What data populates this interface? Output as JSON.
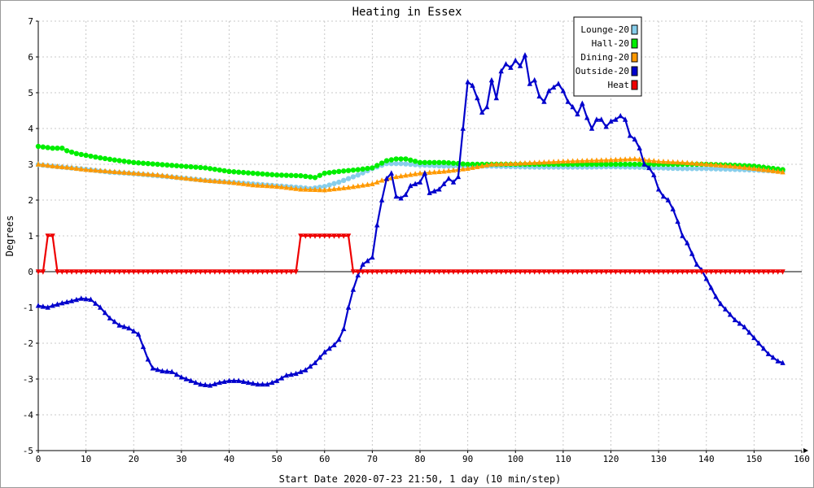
{
  "chart_data": {
    "type": "line",
    "title": "Heating in Essex",
    "xlabel": "Start Date 2020-07-23 21:50, 1 day (10 min/step)",
    "ylabel": "Degrees",
    "xlim": [
      0,
      160
    ],
    "ylim": [
      -5,
      7
    ],
    "x_ticks": [
      0,
      10,
      20,
      30,
      40,
      50,
      60,
      70,
      80,
      90,
      100,
      110,
      120,
      130,
      140,
      150,
      160
    ],
    "y_ticks": [
      -5,
      -4,
      -3,
      -2,
      -1,
      0,
      1,
      2,
      3,
      4,
      5,
      6,
      7
    ],
    "grid": true,
    "legend_position": "top-right",
    "series": [
      {
        "name": "Lounge-20",
        "color": "#87ceeb",
        "marker": "circle",
        "points": [
          [
            0,
            2.99
          ],
          [
            5,
            2.92
          ],
          [
            10,
            2.86
          ],
          [
            15,
            2.78
          ],
          [
            20,
            2.74
          ],
          [
            25,
            2.68
          ],
          [
            30,
            2.62
          ],
          [
            35,
            2.55
          ],
          [
            40,
            2.5
          ],
          [
            45,
            2.45
          ],
          [
            50,
            2.4
          ],
          [
            55,
            2.35
          ],
          [
            57,
            2.32
          ],
          [
            60,
            2.38
          ],
          [
            63,
            2.5
          ],
          [
            67,
            2.7
          ],
          [
            70,
            2.88
          ],
          [
            73,
            3.02
          ],
          [
            76,
            3.02
          ],
          [
            80,
            2.98
          ],
          [
            85,
            2.95
          ],
          [
            90,
            2.95
          ],
          [
            95,
            2.95
          ],
          [
            100,
            2.93
          ],
          [
            105,
            2.92
          ],
          [
            110,
            2.92
          ],
          [
            115,
            2.92
          ],
          [
            120,
            2.93
          ],
          [
            125,
            2.92
          ],
          [
            130,
            2.9
          ],
          [
            135,
            2.88
          ],
          [
            140,
            2.88
          ],
          [
            145,
            2.86
          ],
          [
            150,
            2.84
          ],
          [
            156,
            2.8
          ]
        ]
      },
      {
        "name": "Hall-20",
        "color": "#00ee00",
        "marker": "circle",
        "points": [
          [
            0,
            3.5
          ],
          [
            3,
            3.45
          ],
          [
            5,
            3.45
          ],
          [
            6,
            3.38
          ],
          [
            8,
            3.3
          ],
          [
            10,
            3.25
          ],
          [
            13,
            3.18
          ],
          [
            16,
            3.12
          ],
          [
            20,
            3.05
          ],
          [
            25,
            3.0
          ],
          [
            30,
            2.95
          ],
          [
            35,
            2.9
          ],
          [
            40,
            2.8
          ],
          [
            45,
            2.75
          ],
          [
            50,
            2.7
          ],
          [
            55,
            2.68
          ],
          [
            58,
            2.63
          ],
          [
            60,
            2.75
          ],
          [
            63,
            2.8
          ],
          [
            67,
            2.85
          ],
          [
            70,
            2.9
          ],
          [
            73,
            3.1
          ],
          [
            75,
            3.15
          ],
          [
            77,
            3.15
          ],
          [
            80,
            3.05
          ],
          [
            85,
            3.05
          ],
          [
            90,
            3.0
          ],
          [
            95,
            3.0
          ],
          [
            100,
            3.0
          ],
          [
            105,
            3.0
          ],
          [
            110,
            3.0
          ],
          [
            115,
            3.0
          ],
          [
            120,
            3.0
          ],
          [
            125,
            3.0
          ],
          [
            130,
            3.0
          ],
          [
            135,
            3.0
          ],
          [
            140,
            3.0
          ],
          [
            145,
            2.98
          ],
          [
            150,
            2.95
          ],
          [
            156,
            2.85
          ]
        ]
      },
      {
        "name": "Dining-20",
        "color": "#ff9900",
        "marker": "triangle",
        "points": [
          [
            0,
            3.0
          ],
          [
            3,
            2.95
          ],
          [
            7,
            2.9
          ],
          [
            10,
            2.85
          ],
          [
            15,
            2.8
          ],
          [
            20,
            2.75
          ],
          [
            25,
            2.7
          ],
          [
            30,
            2.62
          ],
          [
            35,
            2.55
          ],
          [
            40,
            2.5
          ],
          [
            45,
            2.42
          ],
          [
            50,
            2.38
          ],
          [
            55,
            2.3
          ],
          [
            60,
            2.28
          ],
          [
            65,
            2.35
          ],
          [
            70,
            2.45
          ],
          [
            72,
            2.55
          ],
          [
            75,
            2.65
          ],
          [
            80,
            2.75
          ],
          [
            85,
            2.8
          ],
          [
            90,
            2.88
          ],
          [
            95,
            3.0
          ],
          [
            100,
            3.02
          ],
          [
            105,
            3.05
          ],
          [
            110,
            3.08
          ],
          [
            115,
            3.1
          ],
          [
            120,
            3.12
          ],
          [
            125,
            3.15
          ],
          [
            130,
            3.08
          ],
          [
            135,
            3.05
          ],
          [
            140,
            3.0
          ],
          [
            145,
            2.95
          ],
          [
            150,
            2.88
          ],
          [
            156,
            2.78
          ]
        ]
      },
      {
        "name": "Outside-20",
        "color": "#0000cc",
        "marker": "triangle",
        "points": [
          [
            0,
            -0.95
          ],
          [
            2,
            -1.0
          ],
          [
            3,
            -0.95
          ],
          [
            5,
            -0.88
          ],
          [
            7,
            -0.82
          ],
          [
            9,
            -0.75
          ],
          [
            11,
            -0.78
          ],
          [
            13,
            -1.0
          ],
          [
            15,
            -1.3
          ],
          [
            17,
            -1.5
          ],
          [
            19,
            -1.58
          ],
          [
            21,
            -1.75
          ],
          [
            22,
            -2.1
          ],
          [
            23,
            -2.45
          ],
          [
            24,
            -2.7
          ],
          [
            26,
            -2.78
          ],
          [
            28,
            -2.8
          ],
          [
            30,
            -2.95
          ],
          [
            32,
            -3.05
          ],
          [
            34,
            -3.15
          ],
          [
            36,
            -3.18
          ],
          [
            38,
            -3.1
          ],
          [
            40,
            -3.05
          ],
          [
            42,
            -3.05
          ],
          [
            44,
            -3.1
          ],
          [
            46,
            -3.15
          ],
          [
            48,
            -3.15
          ],
          [
            50,
            -3.05
          ],
          [
            52,
            -2.9
          ],
          [
            54,
            -2.85
          ],
          [
            56,
            -2.75
          ],
          [
            58,
            -2.55
          ],
          [
            60,
            -2.25
          ],
          [
            62,
            -2.05
          ],
          [
            63,
            -1.9
          ],
          [
            64,
            -1.6
          ],
          [
            65,
            -1.0
          ],
          [
            66,
            -0.5
          ],
          [
            67,
            -0.1
          ],
          [
            68,
            0.2
          ],
          [
            69,
            0.3
          ],
          [
            70,
            0.4
          ],
          [
            71,
            1.3
          ],
          [
            72,
            2.0
          ],
          [
            73,
            2.6
          ],
          [
            74,
            2.75
          ],
          [
            75,
            2.1
          ],
          [
            76,
            2.05
          ],
          [
            77,
            2.15
          ],
          [
            78,
            2.4
          ],
          [
            80,
            2.5
          ],
          [
            81,
            2.75
          ],
          [
            82,
            2.2
          ],
          [
            84,
            2.3
          ],
          [
            85,
            2.45
          ],
          [
            86,
            2.6
          ],
          [
            87,
            2.5
          ],
          [
            88,
            2.65
          ],
          [
            89,
            4.0
          ],
          [
            90,
            5.3
          ],
          [
            91,
            5.2
          ],
          [
            92,
            4.85
          ],
          [
            93,
            4.45
          ],
          [
            94,
            4.6
          ],
          [
            95,
            5.35
          ],
          [
            96,
            4.85
          ],
          [
            97,
            5.6
          ],
          [
            98,
            5.8
          ],
          [
            99,
            5.7
          ],
          [
            100,
            5.9
          ],
          [
            101,
            5.75
          ],
          [
            102,
            6.05
          ],
          [
            103,
            5.25
          ],
          [
            104,
            5.35
          ],
          [
            105,
            4.9
          ],
          [
            106,
            4.75
          ],
          [
            107,
            5.05
          ],
          [
            109,
            5.25
          ],
          [
            110,
            5.05
          ],
          [
            111,
            4.75
          ],
          [
            112,
            4.6
          ],
          [
            113,
            4.4
          ],
          [
            114,
            4.7
          ],
          [
            115,
            4.3
          ],
          [
            116,
            4.0
          ],
          [
            117,
            4.25
          ],
          [
            118,
            4.25
          ],
          [
            119,
            4.05
          ],
          [
            120,
            4.2
          ],
          [
            121,
            4.25
          ],
          [
            122,
            4.35
          ],
          [
            123,
            4.25
          ],
          [
            124,
            3.8
          ],
          [
            125,
            3.7
          ],
          [
            126,
            3.45
          ],
          [
            127,
            3.0
          ],
          [
            128,
            2.9
          ],
          [
            129,
            2.7
          ],
          [
            130,
            2.3
          ],
          [
            131,
            2.1
          ],
          [
            132,
            2.0
          ],
          [
            133,
            1.75
          ],
          [
            134,
            1.4
          ],
          [
            135,
            1.0
          ],
          [
            136,
            0.8
          ],
          [
            137,
            0.5
          ],
          [
            138,
            0.2
          ],
          [
            139,
            0.05
          ],
          [
            140,
            -0.2
          ],
          [
            141,
            -0.45
          ],
          [
            142,
            -0.7
          ],
          [
            143,
            -0.9
          ],
          [
            144,
            -1.05
          ],
          [
            145,
            -1.2
          ],
          [
            146,
            -1.35
          ],
          [
            147,
            -1.45
          ],
          [
            148,
            -1.55
          ],
          [
            149,
            -1.7
          ],
          [
            150,
            -1.85
          ],
          [
            151,
            -2.0
          ],
          [
            152,
            -2.15
          ],
          [
            153,
            -2.3
          ],
          [
            154,
            -2.4
          ],
          [
            155,
            -2.5
          ],
          [
            156,
            -2.55
          ]
        ]
      },
      {
        "name": "Heat",
        "color": "#ee0000",
        "marker": "triangle-down",
        "points": [
          [
            0,
            0
          ],
          [
            1,
            0
          ],
          [
            2,
            1
          ],
          [
            3,
            1
          ],
          [
            4,
            0
          ],
          [
            10,
            0
          ],
          [
            20,
            0
          ],
          [
            30,
            0
          ],
          [
            40,
            0
          ],
          [
            50,
            0
          ],
          [
            54,
            0
          ],
          [
            55,
            1
          ],
          [
            56,
            1
          ],
          [
            60,
            1
          ],
          [
            64,
            1
          ],
          [
            65,
            1
          ],
          [
            66,
            0
          ],
          [
            70,
            0
          ],
          [
            80,
            0
          ],
          [
            90,
            0
          ],
          [
            100,
            0
          ],
          [
            110,
            0
          ],
          [
            120,
            0
          ],
          [
            130,
            0
          ],
          [
            140,
            0
          ],
          [
            150,
            0
          ],
          [
            156,
            0
          ]
        ]
      }
    ]
  }
}
